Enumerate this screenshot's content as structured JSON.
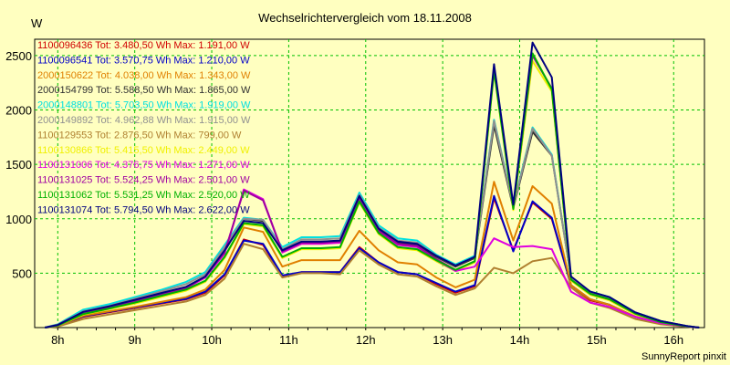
{
  "chart_data": {
    "type": "line",
    "title": "Wechselrichtervergleich vom 18.11.2008",
    "ylabel": "W",
    "footer": "SunnyReport pinxit",
    "ylim": [
      0,
      2650
    ],
    "xlim": [
      7.7,
      16.4
    ],
    "yticks": [
      500,
      1000,
      1500,
      2000,
      2500
    ],
    "xticks": [
      {
        "v": 8,
        "label": "8h"
      },
      {
        "v": 9,
        "label": "9h"
      },
      {
        "v": 10,
        "label": "10h"
      },
      {
        "v": 11,
        "label": "11h"
      },
      {
        "v": 12,
        "label": "12h"
      },
      {
        "v": 13,
        "label": "13h"
      },
      {
        "v": 14,
        "label": "14h"
      },
      {
        "v": 15,
        "label": "15h"
      },
      {
        "v": 16,
        "label": "16h"
      }
    ],
    "grid": true,
    "legend": "top-left",
    "x": [
      7.833,
      8.0,
      8.333,
      8.667,
      9.0,
      9.333,
      9.667,
      9.917,
      10.167,
      10.417,
      10.667,
      10.917,
      11.167,
      11.417,
      11.667,
      11.917,
      12.167,
      12.417,
      12.667,
      12.917,
      13.167,
      13.417,
      13.667,
      13.917,
      14.167,
      14.417,
      14.667,
      14.917,
      15.167,
      15.5,
      15.833,
      16.167,
      16.333
    ],
    "series": [
      {
        "name": "1100096436 Tot: 3.480,50 Wh Max: 1.191,00 W",
        "color": "#d00000",
        "values": [
          0,
          15,
          100,
          140,
          180,
          220,
          260,
          320,
          480,
          810,
          760,
          470,
          510,
          510,
          510,
          740,
          600,
          510,
          490,
          400,
          320,
          380,
          1190,
          710,
          1150,
          1000,
          390,
          250,
          210,
          100,
          40,
          10,
          0
        ]
      },
      {
        "name": "1100096541 Tot: 3.570,75 Wh Max: 1.210,00 W",
        "color": "#0000c8",
        "values": [
          0,
          18,
          105,
          145,
          185,
          225,
          265,
          330,
          490,
          800,
          770,
          480,
          510,
          510,
          510,
          730,
          600,
          510,
          490,
          410,
          330,
          390,
          1210,
          700,
          1160,
          1010,
          390,
          260,
          210,
          100,
          40,
          10,
          0
        ]
      },
      {
        "name": "2000150622 Tot: 4.038,00 Wh Max: 1.343,00 W",
        "color": "#e08000",
        "values": [
          0,
          18,
          110,
          150,
          190,
          235,
          280,
          350,
          530,
          920,
          880,
          560,
          620,
          620,
          620,
          890,
          710,
          600,
          580,
          460,
          370,
          440,
          1340,
          800,
          1300,
          1140,
          390,
          260,
          210,
          100,
          40,
          10,
          0
        ]
      },
      {
        "name": "2000154799 Tot: 5.588,50 Wh Max: 1.865,00 W",
        "color": "#303030",
        "values": [
          0,
          25,
          140,
          190,
          250,
          310,
          370,
          460,
          700,
          1000,
          980,
          700,
          780,
          780,
          790,
          1200,
          900,
          780,
          760,
          650,
          560,
          640,
          1860,
          1100,
          1800,
          1580,
          460,
          320,
          270,
          140,
          60,
          15,
          0
        ]
      },
      {
        "name": "2000148801 Tot: 5.703,50 Wh Max: 1.919,00 W",
        "color": "#00e0e0",
        "values": [
          0,
          30,
          165,
          215,
          280,
          345,
          420,
          510,
          760,
          1010,
          990,
          740,
          830,
          830,
          840,
          1240,
          940,
          820,
          800,
          670,
          580,
          660,
          1910,
          1120,
          1840,
          1590,
          460,
          330,
          280,
          140,
          60,
          15,
          0
        ]
      },
      {
        "name": "2000149892 Tot: 4.962,88 Wh Max: 1.915,00 W",
        "color": "#909090",
        "values": [
          0,
          28,
          150,
          200,
          265,
          330,
          400,
          490,
          740,
          1000,
          990,
          720,
          810,
          810,
          820,
          1220,
          920,
          800,
          780,
          660,
          570,
          650,
          1900,
          1110,
          1830,
          1580,
          460,
          320,
          270,
          140,
          60,
          15,
          0
        ]
      },
      {
        "name": "1100129553 Tot: 2.876,50 Wh Max: 799,00 W",
        "color": "#b08030",
        "values": [
          0,
          10,
          80,
          120,
          160,
          200,
          240,
          300,
          450,
          770,
          720,
          460,
          500,
          500,
          490,
          710,
          580,
          490,
          470,
          380,
          300,
          360,
          550,
          500,
          610,
          640,
          370,
          230,
          180,
          80,
          30,
          8,
          0
        ]
      },
      {
        "name": "1100130866 Tot: 5.415,50 Wh Max: 2.449,00 W",
        "color": "#f0f000",
        "values": [
          0,
          20,
          120,
          170,
          220,
          280,
          340,
          420,
          640,
          950,
          930,
          640,
          720,
          720,
          730,
          1150,
          860,
          730,
          710,
          610,
          520,
          600,
          2350,
          1080,
          2450,
          2170,
          430,
          300,
          250,
          120,
          50,
          12,
          0
        ]
      },
      {
        "name": "1100131006 Tot: 4.376,75 Wh Max: 1.271,00 W",
        "color": "#e000e0",
        "values": [
          0,
          22,
          130,
          180,
          240,
          300,
          360,
          460,
          680,
          1270,
          1180,
          690,
          770,
          770,
          780,
          1180,
          880,
          760,
          740,
          620,
          520,
          560,
          820,
          740,
          750,
          720,
          330,
          230,
          190,
          100,
          40,
          10,
          0
        ]
      },
      {
        "name": "1100131025 Tot: 5.524,25 Wh Max: 2.501,00 W",
        "color": "#a000a0",
        "values": [
          0,
          22,
          135,
          185,
          245,
          305,
          365,
          470,
          690,
          1260,
          1170,
          700,
          780,
          780,
          790,
          1190,
          890,
          770,
          750,
          630,
          530,
          610,
          2380,
          1100,
          2500,
          2200,
          440,
          310,
          260,
          130,
          50,
          12,
          0
        ]
      },
      {
        "name": "1100131062 Tot: 5.531,25 Wh Max: 2.520,00 W",
        "color": "#00b000",
        "values": [
          0,
          20,
          125,
          175,
          230,
          290,
          350,
          430,
          650,
          960,
          940,
          650,
          730,
          730,
          740,
          1160,
          870,
          740,
          720,
          620,
          530,
          610,
          2360,
          1090,
          2520,
          2190,
          440,
          310,
          260,
          130,
          50,
          12,
          0
        ]
      },
      {
        "name": "1100131074 Tot: 5.794,50 Wh Max: 2.622,00 W",
        "color": "#000080",
        "values": [
          0,
          24,
          145,
          195,
          255,
          315,
          375,
          470,
          710,
          980,
          960,
          710,
          790,
          790,
          800,
          1210,
          910,
          790,
          770,
          660,
          570,
          650,
          2420,
          1130,
          2620,
          2300,
          470,
          330,
          280,
          140,
          60,
          15,
          0
        ]
      }
    ]
  }
}
